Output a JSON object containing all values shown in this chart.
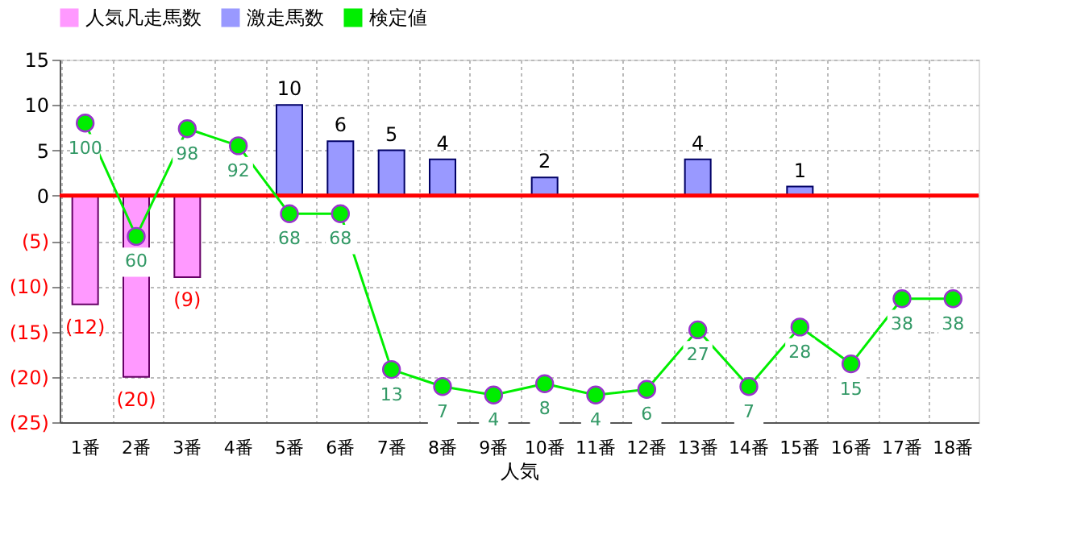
{
  "chart_data": {
    "type": "bar",
    "xlabel": "人気",
    "categories": [
      "1番",
      "2番",
      "3番",
      "4番",
      "5番",
      "6番",
      "7番",
      "8番",
      "9番",
      "10番",
      "11番",
      "12番",
      "13番",
      "14番",
      "15番",
      "16番",
      "17番",
      "18番"
    ],
    "series": [
      {
        "name": "人気凡走馬数",
        "color": "#ff99ff",
        "values": [
          -12,
          -20,
          -9,
          null,
          null,
          null,
          null,
          null,
          null,
          null,
          null,
          null,
          null,
          null,
          null,
          null,
          null,
          null
        ],
        "value_labels": [
          "(12)",
          "(20)",
          "(9)",
          null,
          null,
          null,
          null,
          null,
          null,
          null,
          null,
          null,
          null,
          null,
          null,
          null,
          null,
          null
        ]
      },
      {
        "name": "激走馬数",
        "color": "#9999ff",
        "values": [
          null,
          null,
          null,
          null,
          10,
          6,
          5,
          4,
          null,
          2,
          null,
          null,
          4,
          null,
          1,
          null,
          null,
          null
        ],
        "value_labels": [
          null,
          null,
          null,
          null,
          "10",
          "6",
          "5",
          "4",
          null,
          "2",
          null,
          null,
          "4",
          null,
          "1",
          null,
          null,
          null
        ]
      },
      {
        "name": "検定値",
        "type": "line",
        "axis": "y2",
        "marker": "circle",
        "color": "#00ee00",
        "values": [
          100,
          60,
          98,
          92,
          68,
          68,
          13,
          7,
          4,
          8,
          4,
          6,
          27,
          7,
          28,
          15,
          38,
          38
        ],
        "data_labels": true
      }
    ],
    "ylim": [
      -25,
      15
    ],
    "yticks": [
      15,
      10,
      5,
      0,
      {
        "value": -5,
        "label": "(5)"
      },
      {
        "value": -10,
        "label": "(10)"
      },
      {
        "value": -15,
        "label": "(15)"
      },
      {
        "value": -20,
        "label": "(20)"
      },
      {
        "value": -25,
        "label": "(25)"
      }
    ],
    "y2lim": [
      -5.6,
      122.4
    ],
    "tick_labels": "xy",
    "ref_lines": [
      {
        "axis": "y",
        "value": 0,
        "color": "#ff0000"
      }
    ],
    "grid": true,
    "legend": "top"
  }
}
